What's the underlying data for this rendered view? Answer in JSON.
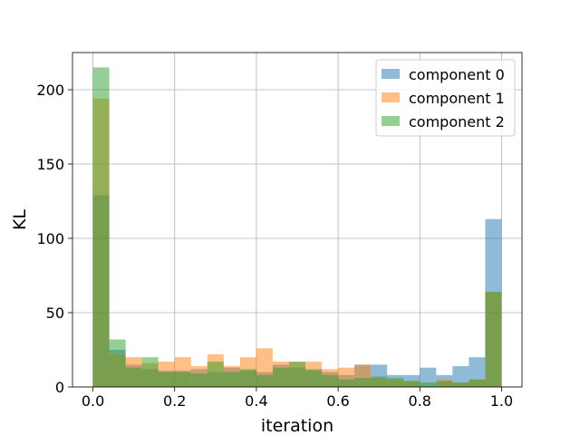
{
  "chart_data": {
    "type": "bar",
    "subtype": "overlapping-histogram",
    "title": "",
    "xlabel": "iteration",
    "ylabel": "KL",
    "xlim": [
      -0.05,
      1.05
    ],
    "ylim": [
      0,
      225
    ],
    "xticks": [
      "0.0",
      "0.2",
      "0.4",
      "0.6",
      "0.8",
      "1.0"
    ],
    "xtick_values": [
      0.0,
      0.2,
      0.4,
      0.6,
      0.8,
      1.0
    ],
    "yticks": [
      "0",
      "50",
      "100",
      "150",
      "200"
    ],
    "ytick_values": [
      0,
      50,
      100,
      150,
      200
    ],
    "grid": true,
    "legend_position": "top-right",
    "bin_edges": [
      0.0,
      0.04,
      0.08,
      0.12,
      0.16,
      0.2,
      0.24,
      0.28,
      0.32,
      0.36,
      0.4,
      0.44,
      0.48,
      0.52,
      0.56,
      0.6,
      0.64,
      0.68,
      0.72,
      0.76,
      0.8,
      0.84,
      0.88,
      0.92,
      0.96,
      1.0
    ],
    "series": [
      {
        "name": "component 0",
        "color": "#1f77b4",
        "values": [
          129,
          25,
          15,
          12,
          11,
          11,
          12,
          10,
          13,
          11,
          10,
          15,
          13,
          11,
          10,
          8,
          15,
          15,
          8,
          8,
          13,
          8,
          14,
          20,
          113
        ]
      },
      {
        "name": "component 1",
        "color": "#ff7f0e",
        "values": [
          194,
          22,
          20,
          16,
          17,
          20,
          14,
          22,
          14,
          20,
          26,
          17,
          17,
          17,
          12,
          13,
          15,
          6,
          5,
          4,
          1,
          5,
          3,
          5,
          64
        ]
      },
      {
        "name": "component 2",
        "color": "#2ca02c",
        "values": [
          215,
          32,
          13,
          20,
          10,
          10,
          9,
          17,
          10,
          12,
          8,
          13,
          17,
          12,
          8,
          5,
          6,
          7,
          6,
          4,
          3,
          4,
          3,
          5,
          64
        ]
      }
    ]
  }
}
